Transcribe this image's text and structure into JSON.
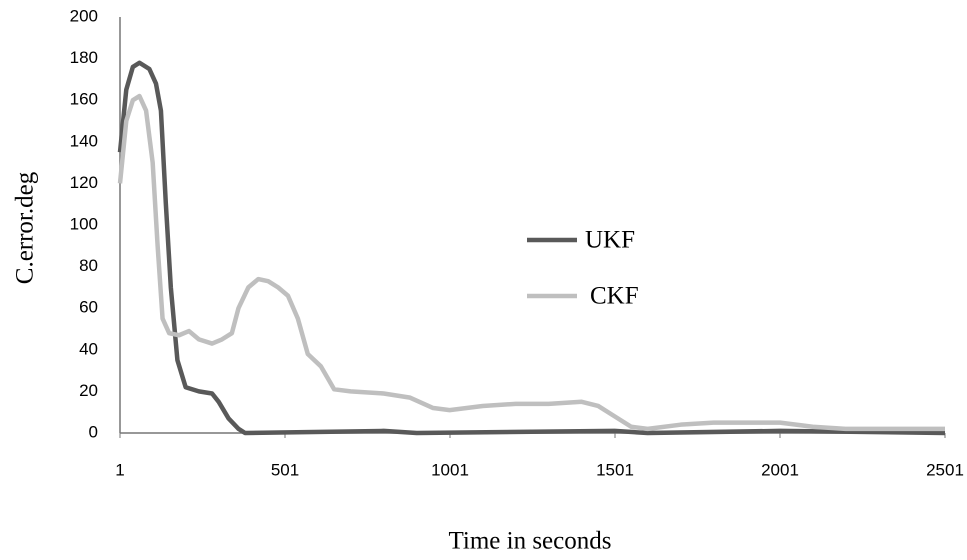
{
  "chart_data": {
    "type": "line",
    "x_label": "Time in seconds",
    "y_label": "C.error.deg",
    "xlim": [
      1,
      2501
    ],
    "xticks": [
      1,
      501,
      1001,
      1501,
      2001,
      2501
    ],
    "ylim": [
      0,
      200
    ],
    "yticks": [
      0,
      20,
      40,
      60,
      80,
      100,
      120,
      140,
      160,
      180,
      200
    ],
    "grid": false,
    "legend": "center",
    "series": [
      {
        "name": "UKF",
        "color": "#595959",
        "x": [
          1,
          20,
          40,
          60,
          90,
          110,
          125,
          140,
          155,
          175,
          200,
          240,
          280,
          300,
          330,
          360,
          380,
          800,
          900,
          1500,
          1600,
          2001,
          2501
        ],
        "values": [
          135,
          165,
          176,
          178,
          175,
          168,
          155,
          110,
          70,
          35,
          22,
          20,
          19,
          15,
          7,
          2,
          0,
          1,
          0,
          1,
          0,
          1,
          0
        ]
      },
      {
        "name": "CKF",
        "color": "#bfbfbf",
        "x": [
          1,
          20,
          40,
          60,
          80,
          100,
          115,
          130,
          150,
          180,
          210,
          240,
          280,
          310,
          340,
          360,
          390,
          420,
          450,
          480,
          510,
          540,
          570,
          610,
          650,
          700,
          800,
          880,
          950,
          1000,
          1100,
          1200,
          1300,
          1400,
          1450,
          1500,
          1550,
          1600,
          1700,
          1800,
          1900,
          2001,
          2100,
          2200,
          2501
        ],
        "values": [
          120,
          150,
          160,
          162,
          155,
          130,
          90,
          55,
          48,
          47,
          49,
          45,
          43,
          45,
          48,
          60,
          70,
          74,
          73,
          70,
          66,
          55,
          38,
          32,
          21,
          20,
          19,
          17,
          12,
          11,
          13,
          14,
          14,
          15,
          13,
          8,
          3,
          2,
          4,
          5,
          5,
          5,
          3,
          2,
          2
        ]
      }
    ]
  }
}
